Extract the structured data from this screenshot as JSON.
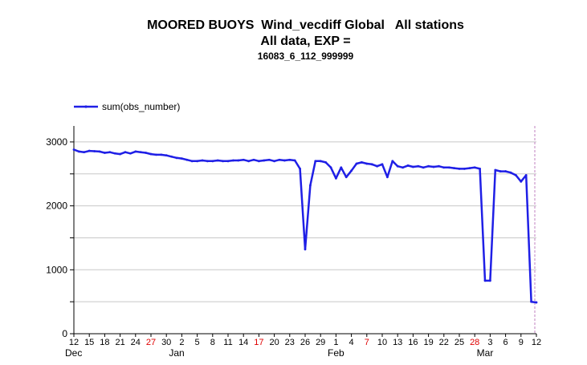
{
  "title": {
    "line1": "MOORED BUOYS  Wind_vecdiff Global   All stations",
    "line2": "All data, EXP =",
    "line3": "16083_6_112_999999"
  },
  "colors": {
    "series": "#1f1fe6",
    "highlight_tick": "#e00000",
    "grid": "#c8c8c8",
    "marker_line": "#c080c0"
  },
  "chart_data": {
    "type": "line",
    "title": "MOORED BUOYS  Wind_vecdiff Global   All stations",
    "subtitle": "All data, EXP = 16083_6_112_999999",
    "xlabel": "",
    "ylabel": "",
    "ylim": [
      0,
      3250
    ],
    "yticks": [
      0,
      1000,
      2000,
      3000
    ],
    "xlim": [
      "Dec 12",
      "Mar 12"
    ],
    "grid": true,
    "legend_position": "top-left",
    "x_tick_labels": [
      "12",
      "15",
      "18",
      "21",
      "24",
      "27",
      "30",
      "2",
      "5",
      "8",
      "11",
      "14",
      "17",
      "20",
      "23",
      "26",
      "29",
      "1",
      "4",
      "7",
      "10",
      "13",
      "16",
      "19",
      "22",
      "25",
      "28",
      "3",
      "6",
      "9",
      "12"
    ],
    "red_ticks": [
      "27",
      "17",
      "7",
      "28"
    ],
    "month_labels": [
      "Dec",
      "Jan",
      "Feb",
      "Mar"
    ],
    "series": [
      {
        "name": "sum(obs_number)",
        "x": [
          "Dec 12",
          "Dec 13",
          "Dec 14",
          "Dec 15",
          "Dec 16",
          "Dec 17",
          "Dec 18",
          "Dec 19",
          "Dec 20",
          "Dec 21",
          "Dec 22",
          "Dec 23",
          "Dec 24",
          "Dec 25",
          "Dec 26",
          "Dec 27",
          "Dec 28",
          "Dec 29",
          "Dec 30",
          "Dec 31",
          "Jan 1",
          "Jan 2",
          "Jan 3",
          "Jan 4",
          "Jan 5",
          "Jan 6",
          "Jan 7",
          "Jan 8",
          "Jan 9",
          "Jan 10",
          "Jan 11",
          "Jan 12",
          "Jan 13",
          "Jan 14",
          "Jan 15",
          "Jan 16",
          "Jan 17",
          "Jan 18",
          "Jan 19",
          "Jan 20",
          "Jan 21",
          "Jan 22",
          "Jan 23",
          "Jan 24",
          "Jan 25",
          "Jan 26",
          "Jan 27",
          "Jan 28",
          "Jan 29",
          "Jan 30",
          "Jan 31",
          "Feb 1",
          "Feb 2",
          "Feb 3",
          "Feb 4",
          "Feb 5",
          "Feb 6",
          "Feb 7",
          "Feb 8",
          "Feb 9",
          "Feb 10",
          "Feb 11",
          "Feb 12",
          "Feb 13",
          "Feb 14",
          "Feb 15",
          "Feb 16",
          "Feb 17",
          "Feb 18",
          "Feb 19",
          "Feb 20",
          "Feb 21",
          "Feb 22",
          "Feb 23",
          "Feb 24",
          "Feb 25",
          "Feb 26",
          "Feb 27",
          "Feb 28",
          "Mar 1",
          "Mar 2",
          "Mar 3",
          "Mar 4",
          "Mar 5",
          "Mar 6",
          "Mar 7",
          "Mar 8",
          "Mar 9",
          "Mar 10",
          "Mar 11",
          "Mar 12"
        ],
        "values": [
          2880,
          2850,
          2840,
          2860,
          2855,
          2850,
          2830,
          2840,
          2820,
          2810,
          2840,
          2820,
          2850,
          2840,
          2830,
          2810,
          2800,
          2800,
          2790,
          2770,
          2750,
          2740,
          2720,
          2700,
          2700,
          2710,
          2700,
          2700,
          2710,
          2700,
          2700,
          2710,
          2710,
          2720,
          2700,
          2720,
          2700,
          2710,
          2720,
          2700,
          2720,
          2710,
          2720,
          2710,
          2580,
          1320,
          2320,
          2700,
          2700,
          2680,
          2600,
          2430,
          2600,
          2450,
          2550,
          2660,
          2680,
          2660,
          2650,
          2620,
          2650,
          2450,
          2700,
          2620,
          2600,
          2630,
          2610,
          2620,
          2600,
          2620,
          2610,
          2620,
          2600,
          2600,
          2590,
          2580,
          2580,
          2590,
          2600,
          2580,
          830,
          830,
          2560,
          2540,
          2540,
          2520,
          2480,
          2380,
          2480,
          500,
          490
        ]
      }
    ]
  }
}
